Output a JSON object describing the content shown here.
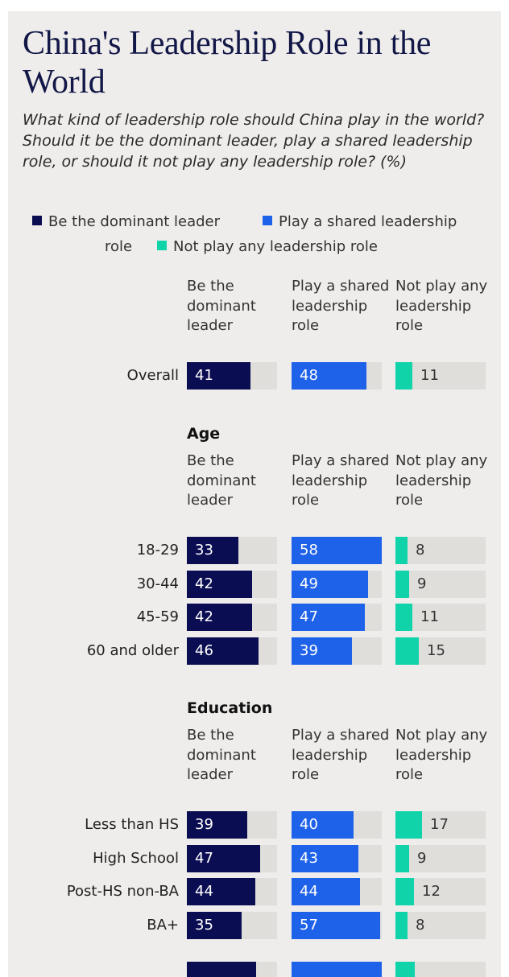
{
  "title": "China's Leadership Role in the World",
  "subtitle": "What kind of leadership role should China play in the world? Should it be the dominant leader, play a shared leadership role, or should it not play any leadership role? (%)",
  "legend": {
    "dominant": "Be the dominant leader",
    "shared": "Play a shared leadership role",
    "none": "Not play any leadership role"
  },
  "columns": {
    "dominant": [
      "Be the",
      "dominant",
      "leader"
    ],
    "shared": [
      "Play a",
      "shared",
      "leadership",
      "role"
    ],
    "none": [
      "Not play",
      "any",
      "leadership",
      "role"
    ]
  },
  "colors": {
    "dominant": "#0b0d52",
    "shared": "#1f62ea",
    "none": "#10d3a9",
    "track": "#e0dedb"
  },
  "chart_data": {
    "type": "bar",
    "title": "China's Leadership Role in the World",
    "series": [
      {
        "name": "Be the dominant leader",
        "key": "dominant"
      },
      {
        "name": "Play a shared leadership role",
        "key": "shared"
      },
      {
        "name": "Not play any leadership role",
        "key": "none"
      }
    ],
    "scale_max": 58,
    "groups": [
      {
        "heading": "",
        "rows": [
          {
            "label": "Overall",
            "dominant": 41,
            "shared": 48,
            "none": 11
          }
        ]
      },
      {
        "heading": "Age",
        "rows": [
          {
            "label": "18-29",
            "dominant": 33,
            "shared": 58,
            "none": 8
          },
          {
            "label": "30-44",
            "dominant": 42,
            "shared": 49,
            "none": 9
          },
          {
            "label": "45-59",
            "dominant": 42,
            "shared": 47,
            "none": 11
          },
          {
            "label": "60 and older",
            "dominant": 46,
            "shared": 39,
            "none": 15
          }
        ]
      },
      {
        "heading": "Education",
        "rows": [
          {
            "label": "Less than HS",
            "dominant": 39,
            "shared": 40,
            "none": 17
          },
          {
            "label": "High School",
            "dominant": 47,
            "shared": 43,
            "none": 9
          },
          {
            "label": "Post-HS non-BA",
            "dominant": 44,
            "shared": 44,
            "none": 12
          },
          {
            "label": "BA+",
            "dominant": 35,
            "shared": 57,
            "none": 8
          }
        ]
      }
    ]
  }
}
